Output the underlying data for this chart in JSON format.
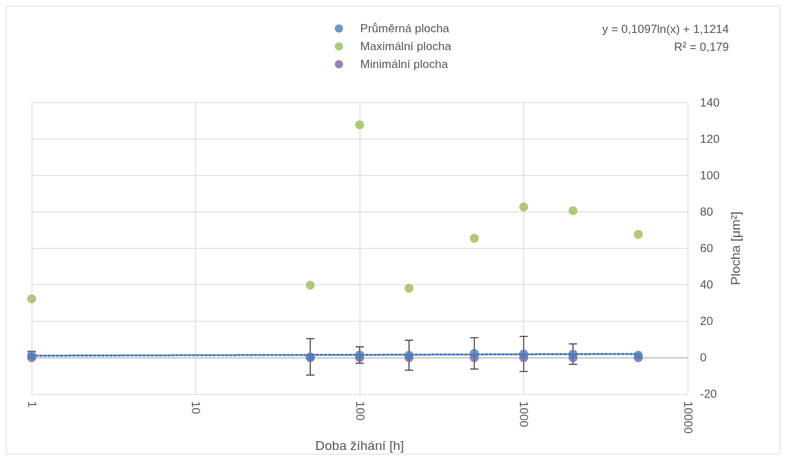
{
  "chart_data": {
    "type": "scatter",
    "xlabel": "Doba žíhání [h]",
    "ylabel": "Plocha [μm²]",
    "x": [
      1,
      50,
      100,
      200,
      500,
      1000,
      2000,
      5000
    ],
    "series": [
      {
        "name": "Průměrná plocha",
        "color": "#4a7ebb",
        "values": [
          1.5,
          0.5,
          1.5,
          1.4,
          2.4,
          2.1,
          2,
          1.4
        ],
        "errors": [
          2,
          10,
          4.5,
          8.2,
          8.6,
          9.6,
          5.6,
          null
        ]
      },
      {
        "name": "Maximální plocha",
        "color": "#9bbb59",
        "values": [
          32.3,
          39.8,
          127.7,
          38.1,
          65.5,
          82.7,
          80.6,
          67.6
        ]
      },
      {
        "name": "Minimální plocha",
        "color": "#8064a2",
        "values": [
          0,
          0,
          0,
          0,
          0,
          0,
          0,
          0
        ]
      },
      {
        "type": "line",
        "color": "#4a7ebb",
        "line_style": "dotted",
        "marker": "none",
        "x": [
          1,
          10,
          100,
          1000,
          5000
        ],
        "values": [
          1.1,
          1.4,
          1.6,
          1.9,
          2.1
        ]
      }
    ],
    "annotations": [
      "y = 0,1097ln(x) + 1,1214",
      "R² = 0,179"
    ],
    "log": "x",
    "xlim": [
      1,
      10000
    ],
    "xticks": [
      1,
      10,
      100,
      1000,
      10000
    ],
    "ylim": [
      -20,
      140
    ],
    "yticks": [
      -20,
      0,
      20,
      40,
      60,
      80,
      100,
      120,
      140
    ],
    "grid": true,
    "legend": "top",
    "marker": "circle"
  }
}
